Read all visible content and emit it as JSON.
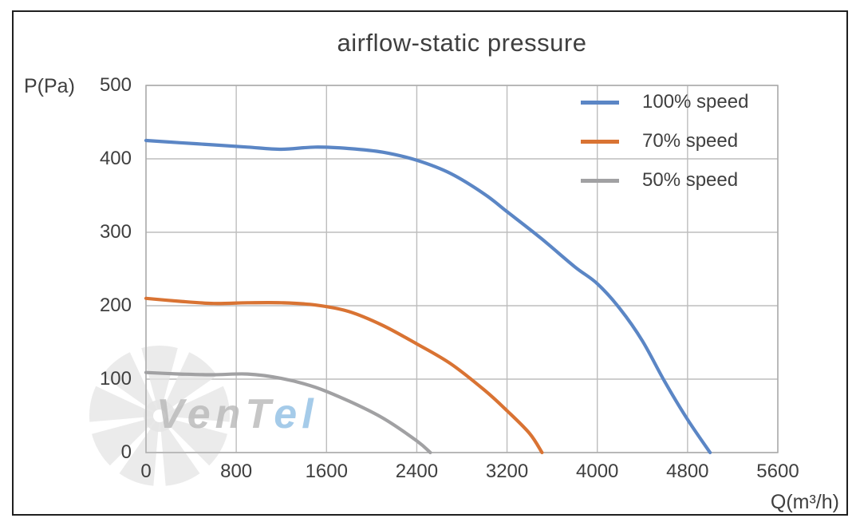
{
  "page": {
    "background": "#ffffff",
    "border_color": "#1f1f1f"
  },
  "chart_data": {
    "type": "line",
    "title": "airflow-static pressure",
    "ylabel": "P(Pa)",
    "xlabel": "Q(m³/h)",
    "xlim": [
      0,
      5600
    ],
    "ylim": [
      0,
      500
    ],
    "xticks": [
      0,
      800,
      1600,
      2400,
      3200,
      4000,
      4800,
      5600
    ],
    "yticks": [
      500,
      400,
      300,
      200,
      100,
      0
    ],
    "grid": true,
    "legend_position": "top-right-inside",
    "series": [
      {
        "name": "100% speed",
        "color": "#5b86c5",
        "points": [
          [
            0,
            425
          ],
          [
            300,
            422
          ],
          [
            600,
            419
          ],
          [
            900,
            416
          ],
          [
            1200,
            413
          ],
          [
            1500,
            416
          ],
          [
            1800,
            414
          ],
          [
            2100,
            409
          ],
          [
            2400,
            398
          ],
          [
            2700,
            380
          ],
          [
            3000,
            352
          ],
          [
            3200,
            328
          ],
          [
            3500,
            292
          ],
          [
            3800,
            253
          ],
          [
            4000,
            230
          ],
          [
            4200,
            196
          ],
          [
            4400,
            152
          ],
          [
            4600,
            96
          ],
          [
            4800,
            45
          ],
          [
            5000,
            0
          ]
        ]
      },
      {
        "name": "70% speed",
        "color": "#d97333",
        "points": [
          [
            0,
            210
          ],
          [
            300,
            206
          ],
          [
            600,
            203
          ],
          [
            900,
            204
          ],
          [
            1200,
            204
          ],
          [
            1500,
            201
          ],
          [
            1800,
            192
          ],
          [
            2100,
            173
          ],
          [
            2400,
            148
          ],
          [
            2700,
            121
          ],
          [
            3000,
            85
          ],
          [
            3200,
            57
          ],
          [
            3400,
            26
          ],
          [
            3510,
            0
          ]
        ]
      },
      {
        "name": "50% speed",
        "color": "#a1a1a3",
        "points": [
          [
            0,
            109
          ],
          [
            300,
            107
          ],
          [
            600,
            106
          ],
          [
            900,
            107
          ],
          [
            1200,
            101
          ],
          [
            1500,
            89
          ],
          [
            1800,
            70
          ],
          [
            2100,
            47
          ],
          [
            2400,
            16
          ],
          [
            2520,
            0
          ]
        ]
      }
    ],
    "colors": {
      "gridline": "#bdbdbd",
      "plot_border": "#ababab",
      "text": "#3f3f3f"
    }
  },
  "watermark": {
    "text_gray": "VenT",
    "text_blue": "el",
    "fan_color": "#e6e6e6",
    "text_gray_color": "rgba(184,184,184,0.8)",
    "text_blue_color": "rgba(142,190,228,0.8)"
  }
}
